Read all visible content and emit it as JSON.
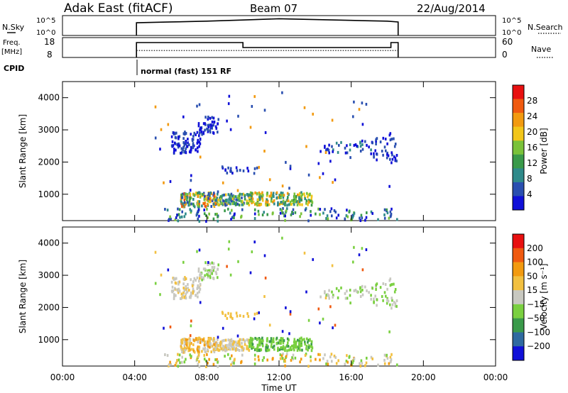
{
  "header": {
    "site": "Adak East (fitACF)",
    "beam": "Beam 07",
    "date": "22/Aug/2014"
  },
  "top_panels": {
    "nsky_label": "N.Sky",
    "nsearch_label": "N.Search",
    "noise_ticks": [
      "10^5",
      "10^0"
    ],
    "freq_label": "Freq.",
    "freq_unit": "[MHz]",
    "freq_ticks": [
      "18",
      "8"
    ],
    "nave_ticks": [
      "60",
      "0"
    ],
    "nave_label": "Nave",
    "cpid_label": "CPID",
    "cpid_text": "normal (fast) 151 RF"
  },
  "colors": {
    "power": [
      "#1010d8",
      "#2a4fb0",
      "#2f8a8a",
      "#3a9a4a",
      "#7ac23a",
      "#f2c61a",
      "#f29a10",
      "#f05a10",
      "#e81010"
    ],
    "velocity": [
      "#e81010",
      "#f05a10",
      "#f29a10",
      "#f2c040",
      "#c8c8c0",
      "#7ad040",
      "#3a9a4a",
      "#2f6aa0",
      "#1010d8"
    ]
  },
  "chart_data": [
    {
      "type": "line",
      "name_key": "noise",
      "x_range": [
        "00:00",
        "24:00"
      ],
      "x_time_hours": [
        4.1,
        6.0,
        8.0,
        10.0,
        12.0,
        14.0,
        16.0,
        18.0,
        18.6
      ],
      "series": [
        {
          "name": "N.Sky",
          "values": [
            3.2,
            3.4,
            3.6,
            3.9,
            4.2,
            4.0,
            3.8,
            3.6,
            3.4
          ]
        }
      ],
      "ylim": [
        0,
        5
      ],
      "y_scale": "log"
    },
    {
      "type": "line",
      "name_key": "frequency",
      "x_hours": [
        4.1,
        10.0,
        10.0,
        18.2,
        18.2,
        18.6
      ],
      "freq_mhz": [
        15.5,
        15.5,
        13.0,
        13.0,
        15.5,
        15.5
      ],
      "ylim": [
        8,
        18
      ],
      "nave_ylim": [
        0,
        60
      ]
    },
    {
      "type": "heatmap",
      "name_key": "power",
      "xlabel": "Time UT",
      "ylabel": "Slant Range [km]",
      "x_ticks": [
        "00:00",
        "04:00",
        "08:00",
        "12:00",
        "16:00",
        "20:00",
        "00:00"
      ],
      "y_ticks": [
        "1000",
        "2000",
        "3000",
        "4000"
      ],
      "xlim_hours": [
        0,
        24
      ],
      "ylim_km": [
        180,
        4500
      ],
      "colorbar_label": "Power [dB]",
      "colorbar_ticks": [
        "4",
        "8",
        "12",
        "16",
        "20",
        "24",
        "28"
      ],
      "colorbar_range": [
        0,
        30
      ]
    },
    {
      "type": "heatmap",
      "name_key": "velocity",
      "xlabel": "Time UT",
      "ylabel": "Slant Range [km]",
      "x_ticks": [
        "00:00",
        "04:00",
        "08:00",
        "12:00",
        "16:00",
        "20:00",
        "00:00"
      ],
      "y_ticks": [
        "1000",
        "2000",
        "3000",
        "4000"
      ],
      "xlim_hours": [
        0,
        24
      ],
      "ylim_km": [
        180,
        4500
      ],
      "colorbar_label": "Velocity [m s⁻¹]",
      "colorbar_ticks": [
        "200",
        "100",
        "50",
        "15",
        "−15",
        "−50",
        "−100",
        "−200"
      ],
      "colorbar_range": [
        -250,
        250
      ]
    }
  ]
}
